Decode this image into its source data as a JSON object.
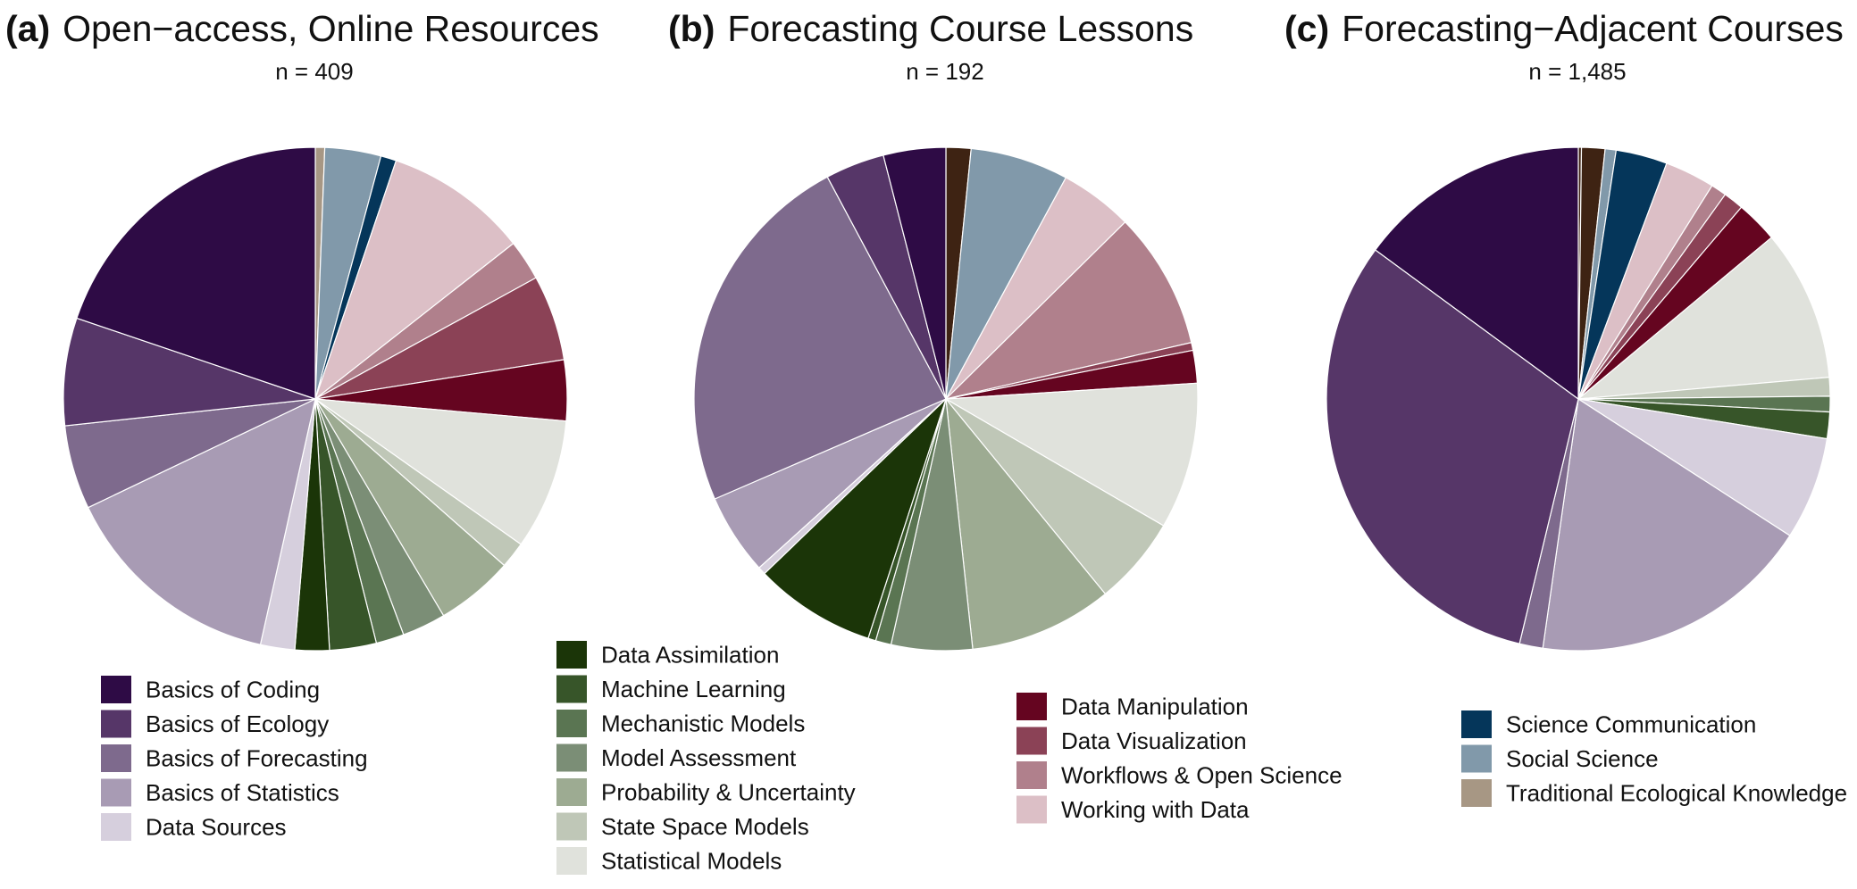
{
  "chart_data": [
    {
      "type": "pie",
      "panel_letter": "(a)",
      "title": "Open−access, Online Resources",
      "subtitle": "n = 409",
      "start": "12 o'clock",
      "direction": "clockwise",
      "slices": [
        {
          "label": "Traditional Ecological Knowledge",
          "value": 0.6
        },
        {
          "label": "Social Science",
          "value": 3.6
        },
        {
          "label": "Science Communication",
          "value": 1.0
        },
        {
          "label": "Working with Data",
          "value": 9.2
        },
        {
          "label": "Workflows & Open Science",
          "value": 2.6
        },
        {
          "label": "Data Visualization",
          "value": 5.5
        },
        {
          "label": "Data Manipulation",
          "value": 3.9
        },
        {
          "label": "Statistical Models",
          "value": 8.4
        },
        {
          "label": "State Space Models",
          "value": 1.7
        },
        {
          "label": "Probability & Uncertainty",
          "value": 5.0
        },
        {
          "label": "Model Assessment",
          "value": 2.8
        },
        {
          "label": "Mechanistic Models",
          "value": 1.8
        },
        {
          "label": "Machine Learning",
          "value": 3.0
        },
        {
          "label": "Data Assimilation",
          "value": 2.2
        },
        {
          "label": "Data Sources",
          "value": 2.2
        },
        {
          "label": "Basics of Statistics",
          "value": 14.4
        },
        {
          "label": "Basics of Forecasting",
          "value": 5.4
        },
        {
          "label": "Basics of Ecology",
          "value": 6.9
        },
        {
          "label": "Basics of Coding",
          "value": 19.8
        }
      ]
    },
    {
      "type": "pie",
      "panel_letter": "(b)",
      "title": "Forecasting Course Lessons",
      "subtitle": "n = 192",
      "start": "12 o'clock",
      "direction": "clockwise",
      "slices": [
        {
          "label": "Traditional Ecological Knowledge",
          "value": 1.6
        },
        {
          "label": "Social Science",
          "value": 6.3
        },
        {
          "label": "Working with Data",
          "value": 4.7
        },
        {
          "label": "Workflows & Open Science",
          "value": 8.8
        },
        {
          "label": "Data Visualization",
          "value": 0.5
        },
        {
          "label": "Data Manipulation",
          "value": 2.1
        },
        {
          "label": "Statistical Models",
          "value": 9.4
        },
        {
          "label": "State Space Models",
          "value": 5.7
        },
        {
          "label": "Probability & Uncertainty",
          "value": 9.2
        },
        {
          "label": "Model Assessment",
          "value": 5.2
        },
        {
          "label": "Mechanistic Models",
          "value": 1.0
        },
        {
          "label": "Machine Learning",
          "value": 0.5
        },
        {
          "label": "Data Assimilation",
          "value": 7.8
        },
        {
          "label": "Data Sources",
          "value": 0.5
        },
        {
          "label": "Basics of Statistics",
          "value": 5.2
        },
        {
          "label": "Basics of Forecasting",
          "value": 23.7
        },
        {
          "label": "Basics of Ecology",
          "value": 3.8
        },
        {
          "label": "Basics of Coding",
          "value": 4.0
        }
      ]
    },
    {
      "type": "pie",
      "panel_letter": "(c)",
      "title": "Forecasting−Adjacent Courses",
      "subtitle": "n = 1,485",
      "start": "12 o'clock",
      "direction": "clockwise",
      "slices": [
        {
          "label": "Traditional Ecological Knowledge",
          "value": 0.2
        },
        {
          "label": "Basics of Coding",
          "value": 1.5
        },
        {
          "label": "Social Science",
          "value": 0.7
        },
        {
          "label": "Science Communication",
          "value": 3.3
        },
        {
          "label": "Working with Data",
          "value": 3.2
        },
        {
          "label": "Workflows & Open Science",
          "value": 1.0
        },
        {
          "label": "Data Visualization",
          "value": 1.3
        },
        {
          "label": "Data Manipulation",
          "value": 2.7
        },
        {
          "label": "Statistical Models",
          "value": 9.7
        },
        {
          "label": "State Space Models",
          "value": 1.2
        },
        {
          "label": "Mechanistic Models",
          "value": 1.0
        },
        {
          "label": "Machine Learning",
          "value": 1.7
        },
        {
          "label": "Data Sources",
          "value": 6.6
        },
        {
          "label": "Basics of Statistics",
          "value": 18.1
        },
        {
          "label": "Basics of Forecasting",
          "value": 1.5
        },
        {
          "label": "Basics of Ecology",
          "value": 31.3
        },
        {
          "label": "Basics of Coding",
          "value": 14.9
        }
      ]
    }
  ],
  "legend": {
    "groups": [
      [
        "Basics of Coding",
        "Basics of Ecology",
        "Basics of Forecasting",
        "Basics of Statistics",
        "Data Sources"
      ],
      [
        "Data Assimilation",
        "Machine Learning",
        "Mechanistic Models",
        "Model Assessment",
        "Probability & Uncertainty",
        "State Space Models",
        "Statistical Models"
      ],
      [
        "Data Manipulation",
        "Data Visualization",
        "Workflows & Open Science",
        "Working with Data"
      ],
      [
        "Science Communication",
        "Social Science",
        "Traditional Ecological Knowledge"
      ]
    ]
  },
  "colors": {
    "Basics of Coding": "#2e0b45",
    "Basics of Ecology": "#563668",
    "Basics of Forecasting": "#7e6a8d",
    "Basics of Statistics": "#a89bb4",
    "Data Sources": "#d6cfdd",
    "Data Assimilation": "#1b3508",
    "Machine Learning": "#375529",
    "Mechanistic Models": "#5a7552",
    "Model Assessment": "#7b8e76",
    "Probability & Uncertainty": "#9dab92",
    "State Space Models": "#bfc7b7",
    "Statistical Models": "#e0e2dc",
    "Data Manipulation": "#650520",
    "Data Visualization": "#8b4256",
    "Workflows & Open Science": "#b0808c",
    "Working with Data": "#dcbfc6",
    "Science Communication": "#05365a",
    "Social Science": "#8199aa",
    "Traditional Ecological Knowledge": "#a79784",
    "Basics of Coding (2)": "#3e2313"
  }
}
